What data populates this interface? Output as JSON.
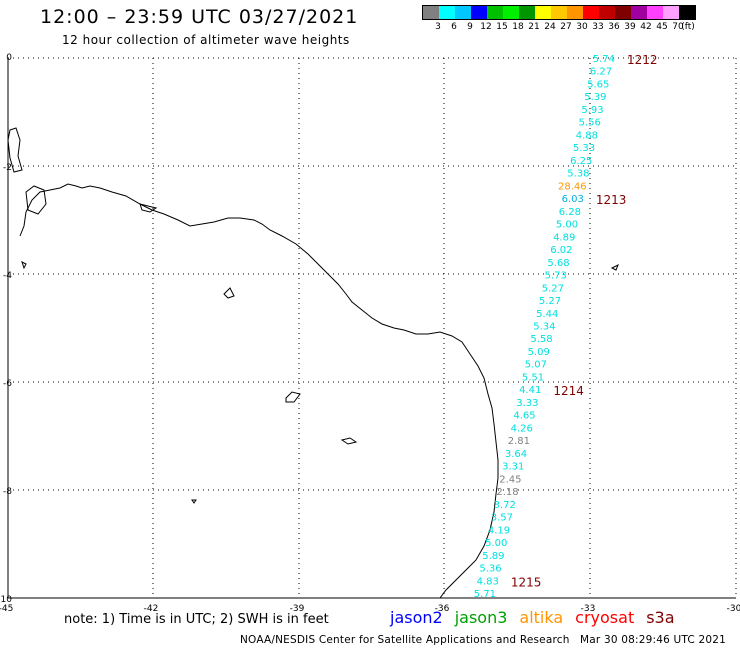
{
  "header": {
    "title": "12:00 – 23:59 UTC 03/27/2021",
    "subtitle": "12 hour collection of altimeter wave heights"
  },
  "colorbar": {
    "colors": [
      "#808080",
      "#00ffff",
      "#00c8ff",
      "#0000ff",
      "#00c000",
      "#00ee00",
      "#009600",
      "#ffff00",
      "#ffc800",
      "#ff9600",
      "#ff0000",
      "#c00000",
      "#800000",
      "#a000a0",
      "#ff40ff",
      "#ffa0ff",
      "#000000"
    ],
    "labels": [
      "3",
      "6",
      "9",
      "12",
      "15",
      "18",
      "21",
      "24",
      "27",
      "30",
      "33",
      "36",
      "39",
      "42",
      "45",
      "70",
      "(ft)"
    ]
  },
  "axes": {
    "lon_ticks": [
      "-45",
      "-42",
      "-39",
      "-36",
      "-33",
      "-30"
    ],
    "lat_ticks": [
      "0",
      "-2",
      "-4",
      "-6",
      "-8",
      "-10"
    ]
  },
  "swh_track": [
    {
      "value": "5.74",
      "color": "#00e0e0"
    },
    {
      "value": "6.27",
      "color": "#00e0e0"
    },
    {
      "value": "5.65",
      "color": "#00e0e0"
    },
    {
      "value": "5.39",
      "color": "#00e0e0"
    },
    {
      "value": "5.93",
      "color": "#00e0e0"
    },
    {
      "value": "5.56",
      "color": "#00e0e0"
    },
    {
      "value": "4.88",
      "color": "#00e0e0"
    },
    {
      "value": "5.33",
      "color": "#00e0e0"
    },
    {
      "value": "6.25",
      "color": "#00e0e0"
    },
    {
      "value": "5.38",
      "color": "#00e0e0"
    },
    {
      "value": "28.46",
      "color": "#ff9600"
    },
    {
      "value": "6.03",
      "color": "#00b0e0"
    },
    {
      "value": "6.28",
      "color": "#00e0e0"
    },
    {
      "value": "5.00",
      "color": "#00e0e0"
    },
    {
      "value": "4.89",
      "color": "#00e0e0"
    },
    {
      "value": "6.02",
      "color": "#00e0e0"
    },
    {
      "value": "5.68",
      "color": "#00e0e0"
    },
    {
      "value": "5.73",
      "color": "#00e0e0"
    },
    {
      "value": "5.27",
      "color": "#00e0e0"
    },
    {
      "value": "5.27",
      "color": "#00e0e0"
    },
    {
      "value": "5.44",
      "color": "#00e0e0"
    },
    {
      "value": "5.34",
      "color": "#00e0e0"
    },
    {
      "value": "5.58",
      "color": "#00e0e0"
    },
    {
      "value": "5.09",
      "color": "#00e0e0"
    },
    {
      "value": "5.07",
      "color": "#00e0e0"
    },
    {
      "value": "5.51",
      "color": "#00e0e0"
    },
    {
      "value": "4.41",
      "color": "#00e0e0"
    },
    {
      "value": "3.33",
      "color": "#00e0e0"
    },
    {
      "value": "4.65",
      "color": "#00e0e0"
    },
    {
      "value": "4.26",
      "color": "#00e0e0"
    },
    {
      "value": "2.81",
      "color": "#808080"
    },
    {
      "value": "3.64",
      "color": "#00e0e0"
    },
    {
      "value": "3.31",
      "color": "#00e0e0"
    },
    {
      "value": "2.45",
      "color": "#808080"
    },
    {
      "value": "2.18",
      "color": "#808080"
    },
    {
      "value": "3.72",
      "color": "#00e0e0"
    },
    {
      "value": "3.57",
      "color": "#00e0e0"
    },
    {
      "value": "4.19",
      "color": "#00e0e0"
    },
    {
      "value": "5.00",
      "color": "#00e0e0"
    },
    {
      "value": "5.89",
      "color": "#00e0e0"
    },
    {
      "value": "5.36",
      "color": "#00e0e0"
    },
    {
      "value": "4.83",
      "color": "#00e0e0"
    },
    {
      "value": "5.71",
      "color": "#00e0e0"
    }
  ],
  "time_marks": [
    {
      "label": "1212",
      "after_index": 0
    },
    {
      "label": "1213",
      "after_index": 11
    },
    {
      "label": "1214",
      "after_index": 26
    },
    {
      "label": "1215",
      "after_index": 41
    }
  ],
  "time_mark_color": "#800000",
  "footer": {
    "note": "note:  1) Time is in UTC;  2) SWH is in feet",
    "satellites": [
      {
        "name": "jason2",
        "color": "#0000ff"
      },
      {
        "name": "jason3",
        "color": "#00a000"
      },
      {
        "name": "altika",
        "color": "#ff9600"
      },
      {
        "name": "cryosat",
        "color": "#ff0000"
      },
      {
        "name": "s3a",
        "color": "#800000"
      }
    ],
    "credit": "NOAA/NESDIS Center for Satellite Applications and Research",
    "timestamp": "Mar 30 08:29:46 UTC 2021"
  }
}
